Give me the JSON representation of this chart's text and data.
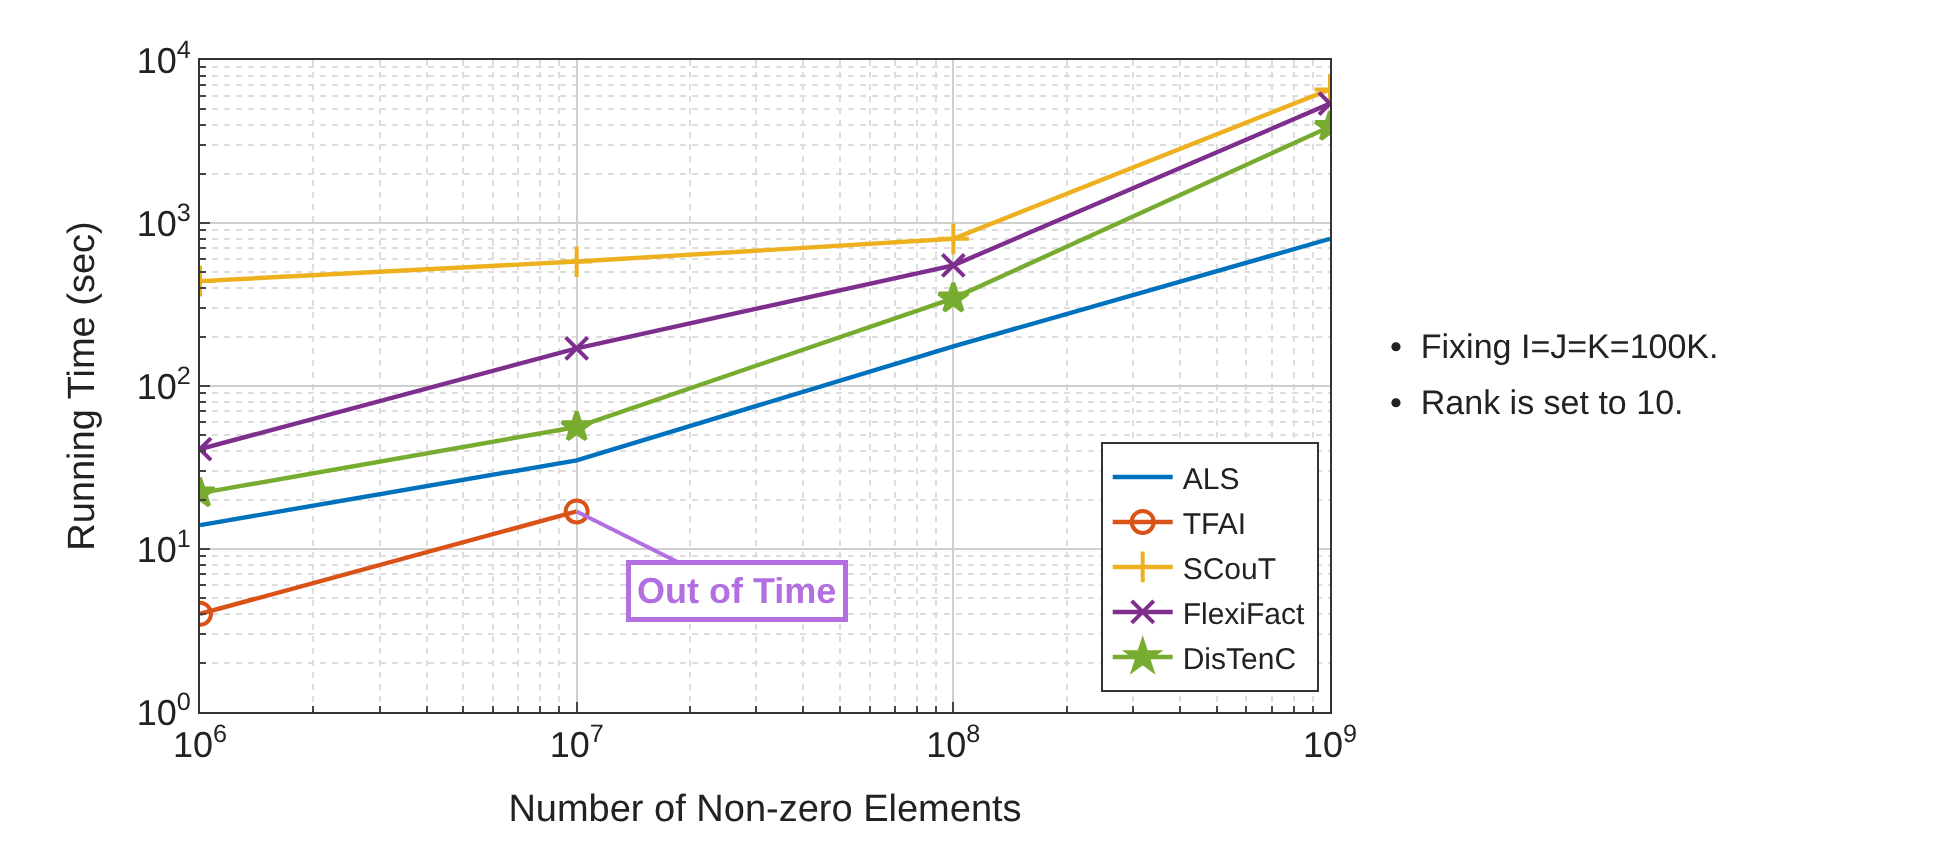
{
  "chart_data": {
    "type": "line",
    "xlabel": "Number of Non-zero Elements",
    "ylabel": "Running Time (sec)",
    "log": "xy",
    "grid": true,
    "legend": "bottom right",
    "x": [
      1000000,
      10000000,
      100000000,
      1000000000
    ],
    "xlim": [
      1000000,
      1000000000
    ],
    "ylim": [
      1,
      10000
    ],
    "xticks": [
      {
        "value": 1000000,
        "label": "10$^{6}$"
      },
      {
        "value": 10000000,
        "label": "10$^{7}$"
      },
      {
        "value": 100000000,
        "label": "10$^{8}$"
      },
      {
        "value": 1000000000,
        "label": "10$^{9}$"
      }
    ],
    "yticks": [
      {
        "value": 1,
        "label": "10$^{0}$"
      },
      {
        "value": 10,
        "label": "10$^{1}$"
      },
      {
        "value": 100,
        "label": "10$^{2}$"
      },
      {
        "value": 1000,
        "label": "10$^{3}$"
      },
      {
        "value": 10000,
        "label": "10$^{4}$"
      }
    ],
    "series": [
      {
        "name": "ALS",
        "color": "#0072bd",
        "marker": "none",
        "values": [
          14,
          35,
          175,
          800
        ]
      },
      {
        "name": "TFAI",
        "color": "#d95319",
        "marker": "circle",
        "values": [
          4,
          17,
          null,
          null
        ]
      },
      {
        "name": "SCouT",
        "color": "#edb120",
        "marker": "cross",
        "values": [
          440,
          580,
          800,
          6600
        ]
      },
      {
        "name": "FlexiFact",
        "color": "#7e2f8e",
        "marker": "x",
        "values": [
          41,
          170,
          550,
          5400
        ]
      },
      {
        "name": "DisTenC",
        "color": "#77ac30",
        "marker": "star",
        "values": [
          22,
          56,
          345,
          3900
        ]
      }
    ],
    "annotations": [
      {
        "text": "Out of Time",
        "x": 10000000,
        "y": 17
      },
      "•  Fixing I=J=K=100K.",
      "•  Rank is set to 10."
    ]
  }
}
